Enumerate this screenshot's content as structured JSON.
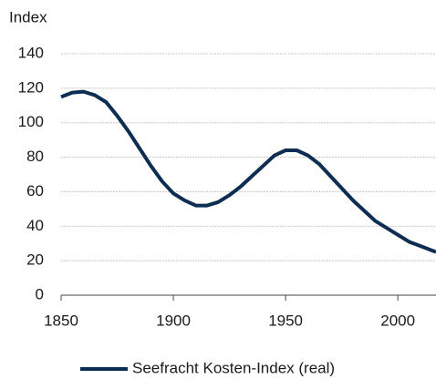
{
  "chart_data": {
    "type": "line",
    "y_label": "Index",
    "x": [
      1850,
      1855,
      1860,
      1865,
      1870,
      1875,
      1880,
      1885,
      1890,
      1895,
      1900,
      1905,
      1910,
      1915,
      1920,
      1925,
      1930,
      1935,
      1940,
      1945,
      1950,
      1955,
      1960,
      1965,
      1970,
      1975,
      1980,
      1985,
      1990,
      1995,
      2000,
      2005,
      2010,
      2015,
      2017
    ],
    "series": [
      {
        "name": "Seefracht Kosten-Index (real)",
        "color": "#0d2d52",
        "values": [
          115,
          117.5,
          118,
          116,
          112,
          104,
          95,
          85,
          75,
          66,
          59,
          55,
          52,
          52,
          54,
          58,
          63,
          69,
          75,
          81,
          84,
          84,
          81,
          76,
          69,
          62,
          55,
          49,
          43,
          39,
          35,
          31,
          28.5,
          26,
          25
        ]
      }
    ],
    "xlim": [
      1850,
      2017
    ],
    "xticks": [
      1850,
      1900,
      1950,
      2000
    ],
    "ylim": [
      0,
      140
    ],
    "yticks": [
      0,
      20,
      40,
      60,
      80,
      100,
      120,
      140
    ],
    "grid": true,
    "legend": "bottom"
  }
}
